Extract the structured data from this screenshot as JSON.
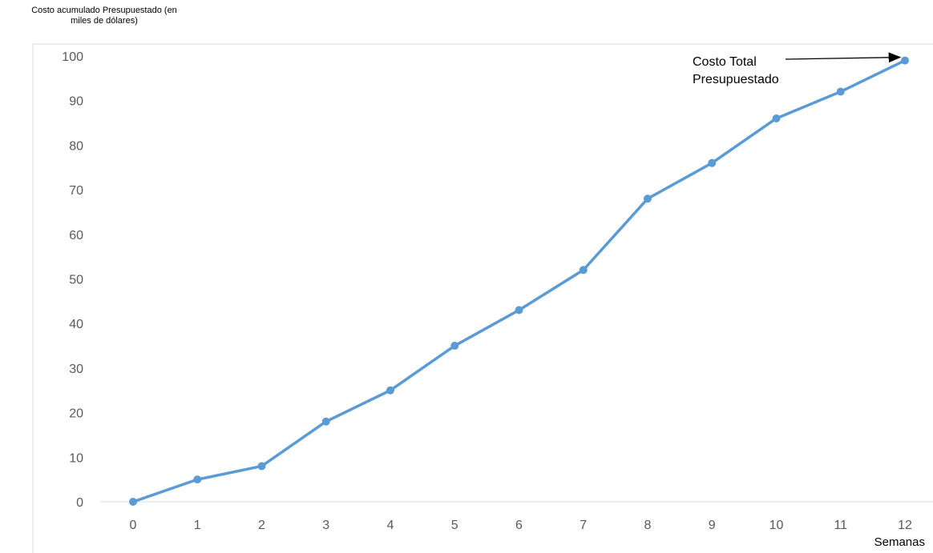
{
  "chart_data": {
    "type": "line",
    "ylabel_lines": [
      "Costo acumulado Presupuestado (en",
      "miles de dólares)"
    ],
    "xlabel": "Semanas",
    "x": [
      0,
      1,
      2,
      3,
      4,
      5,
      6,
      7,
      8,
      9,
      10,
      11,
      12
    ],
    "series": [
      {
        "values": [
          0,
          5,
          8,
          18,
          25,
          35,
          43,
          52,
          68,
          76,
          86,
          92,
          99
        ]
      }
    ],
    "ylim": [
      0,
      100
    ],
    "yticks": [
      0,
      10,
      20,
      30,
      40,
      50,
      60,
      70,
      80,
      90,
      100
    ],
    "grid": false,
    "legend": "none",
    "line_color": "#5b9bd5",
    "annotation": {
      "lines": [
        "Costo Total",
        "Presupuestado"
      ],
      "points_to_x": 12
    }
  }
}
